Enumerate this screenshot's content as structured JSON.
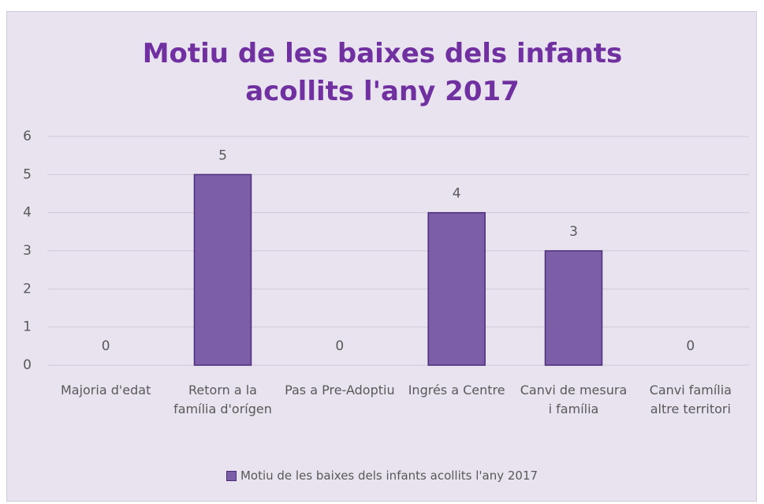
{
  "chart_data": {
    "type": "bar",
    "title": "Motiu de les baixes dels infants acollits l'any 2017",
    "categories": [
      "Majoria d'edat",
      "Retorn a la família d'orígen",
      "Pas a Pre-Adoptiu",
      "Ingrés a Centre",
      "Canvi de mesura i família",
      "Canvi família altre territori"
    ],
    "series": [
      {
        "name": "Motiu de les baixes dels infants acollits l'any 2017",
        "color": "#7b5ea7",
        "values": [
          0,
          5,
          0,
          4,
          3,
          0
        ]
      }
    ],
    "ylim": [
      0,
      6
    ],
    "yticks": [
      0,
      1,
      2,
      3,
      4,
      5,
      6
    ],
    "grid": true,
    "legend": "bottom"
  }
}
